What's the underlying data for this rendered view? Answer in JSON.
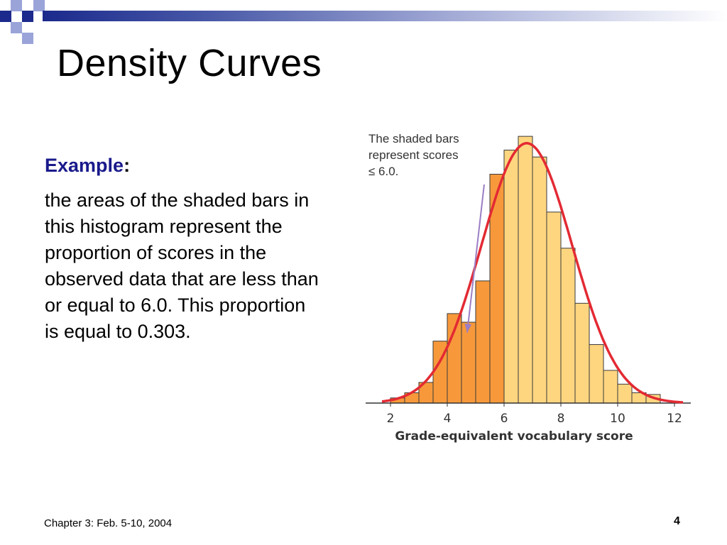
{
  "colors": {
    "brand_navy": "#1b2a8c",
    "accent_square": "#9aa4d9",
    "shaded_bar": "#f7993b",
    "unshaded_bar": "#ffd680",
    "density_curve": "#e32a33",
    "pointer_arrow": "#9b7fc4"
  },
  "slide": {
    "title": "Density Curves",
    "example_label": "Example",
    "example_colon": ":",
    "example_text": "the areas of the shaded bars in this histogram represent the proportion of scores in the observed data that are less than or equal to 6.0. This proportion is equal to 0.303.",
    "footer": "Chapter 3: Feb. 5-10, 2004",
    "page_number": "4"
  },
  "chart_data": {
    "type": "bar",
    "annotation": "The shaded bars represent scores ≤ 6.0.",
    "xlabel": "Grade-equivalent vocabulary score",
    "x_ticks": [
      "2",
      "4",
      "6",
      "8",
      "10",
      "12"
    ],
    "xlim": [
      1.5,
      12.7
    ],
    "ylim": [
      0,
      17
    ],
    "bin_width": 0.5,
    "bins": [
      {
        "start": 2.0,
        "value": 0.3,
        "shaded": true
      },
      {
        "start": 2.5,
        "value": 0.6,
        "shaded": true
      },
      {
        "start": 3.0,
        "value": 1.2,
        "shaded": true
      },
      {
        "start": 3.5,
        "value": 3.6,
        "shaded": true
      },
      {
        "start": 4.0,
        "value": 5.2,
        "shaded": true
      },
      {
        "start": 4.5,
        "value": 4.7,
        "shaded": true
      },
      {
        "start": 5.0,
        "value": 7.1,
        "shaded": true
      },
      {
        "start": 5.5,
        "value": 13.3,
        "shaded": true
      },
      {
        "start": 6.0,
        "value": 14.7,
        "shaded": false
      },
      {
        "start": 6.5,
        "value": 15.5,
        "shaded": false
      },
      {
        "start": 7.0,
        "value": 14.3,
        "shaded": false
      },
      {
        "start": 7.5,
        "value": 11.1,
        "shaded": false
      },
      {
        "start": 8.0,
        "value": 9.0,
        "shaded": false
      },
      {
        "start": 8.5,
        "value": 5.8,
        "shaded": false
      },
      {
        "start": 9.0,
        "value": 3.4,
        "shaded": false
      },
      {
        "start": 9.5,
        "value": 1.9,
        "shaded": false
      },
      {
        "start": 10.0,
        "value": 1.1,
        "shaded": false
      },
      {
        "start": 10.5,
        "value": 0.6,
        "shaded": false
      },
      {
        "start": 11.0,
        "value": 0.5,
        "shaded": false
      }
    ],
    "density_curve": {
      "mean": 6.8,
      "sd": 1.6,
      "peak": 15.1,
      "range": [
        1.7,
        12.3
      ]
    },
    "pointer": {
      "from": {
        "x": 5.3,
        "y": 12.7
      },
      "to": {
        "x": 4.7,
        "y": 4.1
      }
    }
  }
}
